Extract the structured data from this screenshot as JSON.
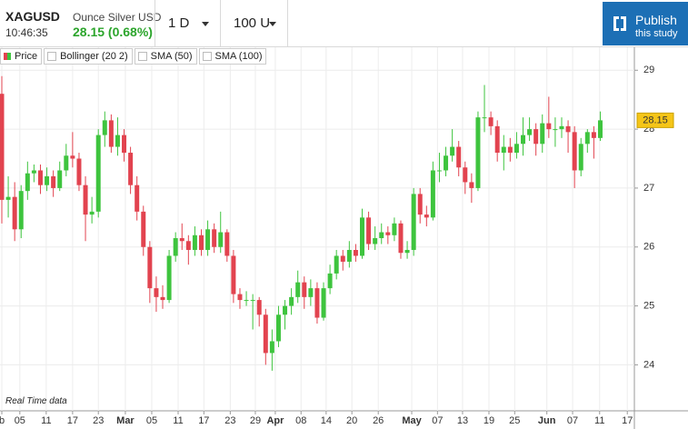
{
  "header": {
    "symbol": "XAGUSD",
    "description": "Ounce Silver USD",
    "time": "10:46:35",
    "price": "28.15 (0.68%)",
    "interval": "1 D",
    "units": "100 U",
    "publish": "Publish",
    "publish_sub": "this study"
  },
  "footnote": "Real Time data",
  "chart_data": {
    "type": "candlestick",
    "legend": [
      "Price",
      "Bollinger (20 2)",
      "SMA (50)",
      "SMA (100)"
    ],
    "up_color": "#3ec43e",
    "down_color": "#e2434f",
    "grid": true,
    "last_price": 28.15,
    "ylim": [
      23.25,
      29.39
    ],
    "yticks": [
      24,
      25,
      26,
      27,
      28,
      29
    ],
    "xlim": [
      0,
      98.3
    ],
    "xticks": [
      {
        "value": 0,
        "label": "b"
      },
      {
        "value": 2.8,
        "label": "05"
      },
      {
        "value": 6.9,
        "label": "11"
      },
      {
        "value": 11.0,
        "label": "17"
      },
      {
        "value": 15.0,
        "label": "23"
      },
      {
        "value": 19.2,
        "label": "Mar"
      },
      {
        "value": 23.3,
        "label": "05"
      },
      {
        "value": 27.4,
        "label": "11"
      },
      {
        "value": 31.4,
        "label": "17"
      },
      {
        "value": 35.5,
        "label": "23"
      },
      {
        "value": 39.4,
        "label": "29"
      },
      {
        "value": 42.5,
        "label": "Apr"
      },
      {
        "value": 46.5,
        "label": "08"
      },
      {
        "value": 50.4,
        "label": "14"
      },
      {
        "value": 54.4,
        "label": "20"
      },
      {
        "value": 58.5,
        "label": "26"
      },
      {
        "value": 63.7,
        "label": "May"
      },
      {
        "value": 67.7,
        "label": "07"
      },
      {
        "value": 71.6,
        "label": "13"
      },
      {
        "value": 75.7,
        "label": "19"
      },
      {
        "value": 79.7,
        "label": "25"
      },
      {
        "value": 84.7,
        "label": "Jun"
      },
      {
        "value": 88.7,
        "label": "07"
      },
      {
        "value": 92.9,
        "label": "11"
      },
      {
        "value": 97.2,
        "label": "17"
      }
    ],
    "x": [
      0,
      1,
      2,
      3,
      4,
      5,
      6,
      7,
      8,
      9,
      10,
      11,
      12,
      13,
      14,
      15,
      16,
      17,
      18,
      19,
      20,
      21,
      22,
      23,
      24,
      25,
      26,
      27,
      28,
      29,
      30,
      31,
      32,
      33,
      34,
      35,
      36,
      37,
      38,
      39,
      40,
      41,
      42,
      43,
      44,
      45,
      46,
      47,
      48,
      49,
      50,
      51,
      52,
      53,
      54,
      55,
      56,
      57,
      58,
      59,
      60,
      61,
      62,
      63,
      64,
      65,
      66,
      67,
      68,
      69,
      70,
      71,
      72,
      73,
      74,
      75,
      76,
      77,
      78,
      79,
      80,
      81,
      82,
      83,
      84,
      85,
      86,
      87,
      88,
      89,
      90,
      91,
      92,
      93
    ],
    "ohlc": [
      [
        28.6,
        28.9,
        26.4,
        26.8
      ],
      [
        26.8,
        27.2,
        26.5,
        26.85
      ],
      [
        26.85,
        27.1,
        26.1,
        26.3
      ],
      [
        26.3,
        27.05,
        26.15,
        26.95
      ],
      [
        26.95,
        27.45,
        26.8,
        27.25
      ],
      [
        27.25,
        27.4,
        27.1,
        27.3
      ],
      [
        27.3,
        27.4,
        26.9,
        27.05
      ],
      [
        27.05,
        27.35,
        26.95,
        27.2
      ],
      [
        27.2,
        27.3,
        26.85,
        27.0
      ],
      [
        27.0,
        27.45,
        26.95,
        27.3
      ],
      [
        27.3,
        27.75,
        27.2,
        27.55
      ],
      [
        27.55,
        27.95,
        27.35,
        27.5
      ],
      [
        27.5,
        27.6,
        26.95,
        27.05
      ],
      [
        27.05,
        27.2,
        26.1,
        26.55
      ],
      [
        26.55,
        26.85,
        26.4,
        26.6
      ],
      [
        26.6,
        28.0,
        26.5,
        27.9
      ],
      [
        27.9,
        28.3,
        27.7,
        28.15
      ],
      [
        28.15,
        28.25,
        27.6,
        27.7
      ],
      [
        27.7,
        28.2,
        27.55,
        27.9
      ],
      [
        27.9,
        28.0,
        27.45,
        27.6
      ],
      [
        27.6,
        27.7,
        26.9,
        27.05
      ],
      [
        27.05,
        27.2,
        26.45,
        26.6
      ],
      [
        26.6,
        26.7,
        25.85,
        26.0
      ],
      [
        26.0,
        26.1,
        25.05,
        25.3
      ],
      [
        25.3,
        25.5,
        24.9,
        25.15
      ],
      [
        25.15,
        25.35,
        24.95,
        25.1
      ],
      [
        25.1,
        25.95,
        25.05,
        25.85
      ],
      [
        25.85,
        26.25,
        25.75,
        26.15
      ],
      [
        26.15,
        26.4,
        25.95,
        26.1
      ],
      [
        26.1,
        26.2,
        25.7,
        25.95
      ],
      [
        25.95,
        26.35,
        25.85,
        26.2
      ],
      [
        26.2,
        26.3,
        25.85,
        25.95
      ],
      [
        25.95,
        26.45,
        25.85,
        26.3
      ],
      [
        26.3,
        26.4,
        25.9,
        26.0
      ],
      [
        26.0,
        26.6,
        25.9,
        26.25
      ],
      [
        26.25,
        26.3,
        25.75,
        25.85
      ],
      [
        25.85,
        25.95,
        25.05,
        25.2
      ],
      [
        25.2,
        25.3,
        24.95,
        25.1
      ],
      [
        25.1,
        25.25,
        25.0,
        25.1
      ],
      [
        25.1,
        25.2,
        24.6,
        25.1
      ],
      [
        25.1,
        25.15,
        24.65,
        24.85
      ],
      [
        24.85,
        24.95,
        24.0,
        24.2
      ],
      [
        24.2,
        24.6,
        23.9,
        24.4
      ],
      [
        24.4,
        25.0,
        24.3,
        24.85
      ],
      [
        24.85,
        25.1,
        24.6,
        25.0
      ],
      [
        25.0,
        25.3,
        24.85,
        25.15
      ],
      [
        25.15,
        25.6,
        25.05,
        25.4
      ],
      [
        25.4,
        25.5,
        24.95,
        25.15
      ],
      [
        25.15,
        25.45,
        25.0,
        25.3
      ],
      [
        25.3,
        25.4,
        24.7,
        24.8
      ],
      [
        24.8,
        25.4,
        24.75,
        25.3
      ],
      [
        25.3,
        25.7,
        25.2,
        25.55
      ],
      [
        25.55,
        25.95,
        25.45,
        25.85
      ],
      [
        25.85,
        25.95,
        25.6,
        25.75
      ],
      [
        25.75,
        26.1,
        25.65,
        25.95
      ],
      [
        25.95,
        26.05,
        25.75,
        25.85
      ],
      [
        25.85,
        26.65,
        25.8,
        26.5
      ],
      [
        26.5,
        26.6,
        25.95,
        26.05
      ],
      [
        26.05,
        26.35,
        25.95,
        26.15
      ],
      [
        26.15,
        26.4,
        26.05,
        26.25
      ],
      [
        26.25,
        26.35,
        26.05,
        26.2
      ],
      [
        26.2,
        26.5,
        26.1,
        26.4
      ],
      [
        26.4,
        26.45,
        25.8,
        25.9
      ],
      [
        25.9,
        26.1,
        25.8,
        25.95
      ],
      [
        25.95,
        27.0,
        25.85,
        26.9
      ],
      [
        26.9,
        27.0,
        26.4,
        26.55
      ],
      [
        26.55,
        26.7,
        26.35,
        26.5
      ],
      [
        26.5,
        27.45,
        26.45,
        27.3
      ],
      [
        27.3,
        27.6,
        27.1,
        27.3
      ],
      [
        27.3,
        27.7,
        27.2,
        27.55
      ],
      [
        27.55,
        28.0,
        27.45,
        27.7
      ],
      [
        27.7,
        27.8,
        27.2,
        27.35
      ],
      [
        27.35,
        27.45,
        26.9,
        27.1
      ],
      [
        27.1,
        27.25,
        26.75,
        27.0
      ],
      [
        27.0,
        28.3,
        26.95,
        28.2
      ],
      [
        28.2,
        28.75,
        27.95,
        28.2
      ],
      [
        28.2,
        28.3,
        27.9,
        28.05
      ],
      [
        28.05,
        28.15,
        27.45,
        27.6
      ],
      [
        27.6,
        27.9,
        27.3,
        27.7
      ],
      [
        27.7,
        27.85,
        27.45,
        27.6
      ],
      [
        27.6,
        27.95,
        27.5,
        27.75
      ],
      [
        27.75,
        28.2,
        27.55,
        27.9
      ],
      [
        27.9,
        28.2,
        27.8,
        28.0
      ],
      [
        28.0,
        28.1,
        27.55,
        27.75
      ],
      [
        27.75,
        28.25,
        27.6,
        28.1
      ],
      [
        28.1,
        28.55,
        27.85,
        28.0
      ],
      [
        28.0,
        28.2,
        27.7,
        28.0
      ],
      [
        28.0,
        28.2,
        27.85,
        28.05
      ],
      [
        28.05,
        28.15,
        27.6,
        27.95
      ],
      [
        27.95,
        28.05,
        27.0,
        27.3
      ],
      [
        27.3,
        27.85,
        27.2,
        27.75
      ],
      [
        27.75,
        28.0,
        27.6,
        27.95
      ],
      [
        27.95,
        28.05,
        27.5,
        27.85
      ],
      [
        27.85,
        28.3,
        27.8,
        28.15
      ]
    ]
  }
}
